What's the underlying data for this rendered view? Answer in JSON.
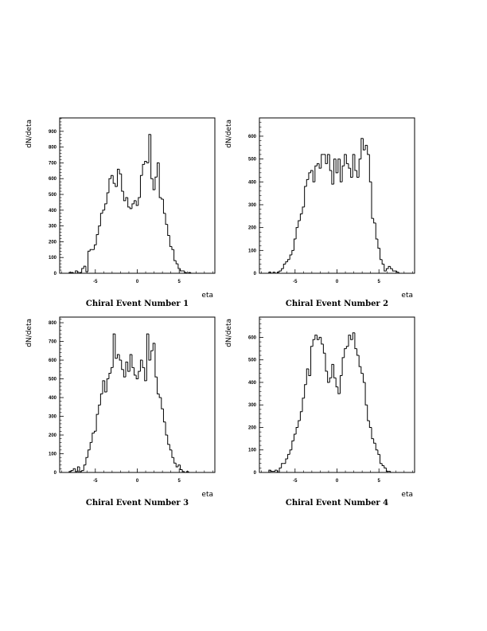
{
  "chart_data": [
    {
      "type": "histogram",
      "caption": "Chiral Event Number 1",
      "xlabel": "eta",
      "ylabel": "dN/deta",
      "xlim": [
        -9.25,
        9.25
      ],
      "ylim": [
        0,
        985
      ],
      "bin_width": 0.25,
      "xticks": [
        -5,
        0,
        5
      ],
      "xtick_labels": [
        "-5",
        "0",
        "5"
      ],
      "yticks": [
        0,
        100,
        200,
        300,
        400,
        500,
        600,
        700,
        800,
        900
      ],
      "x": [
        -8.0,
        -7.75,
        -7.5,
        -7.25,
        -7.0,
        -6.75,
        -6.5,
        -6.25,
        -6.0,
        -5.75,
        -5.5,
        -5.25,
        -5.0,
        -4.75,
        -4.5,
        -4.25,
        -4.0,
        -3.75,
        -3.5,
        -3.25,
        -3.0,
        -2.75,
        -2.5,
        -2.25,
        -2.0,
        -1.75,
        -1.5,
        -1.25,
        -1.0,
        -0.75,
        -0.5,
        -0.25,
        0.0,
        0.25,
        0.5,
        0.75,
        1.0,
        1.25,
        1.5,
        1.75,
        2.0,
        2.25,
        2.5,
        2.75,
        3.0,
        3.25,
        3.5,
        3.75,
        4.0,
        4.25,
        4.5,
        4.75,
        5.0,
        5.25,
        5.5,
        5.75,
        6.0,
        6.25,
        6.5,
        6.75,
        7.0,
        7.25,
        7.5,
        7.75,
        8.0
      ],
      "values": [
        5,
        5,
        0,
        15,
        0,
        5,
        30,
        45,
        10,
        140,
        150,
        150,
        180,
        245,
        300,
        380,
        400,
        440,
        510,
        600,
        620,
        570,
        550,
        660,
        630,
        520,
        460,
        480,
        420,
        410,
        440,
        460,
        430,
        480,
        620,
        690,
        710,
        700,
        880,
        600,
        530,
        610,
        700,
        480,
        470,
        380,
        310,
        240,
        170,
        150,
        80,
        60,
        30,
        15,
        15,
        5,
        0,
        5,
        0,
        0,
        0,
        0,
        0,
        0,
        0
      ]
    },
    {
      "type": "histogram",
      "caption": "Chiral Event Number 2",
      "xlabel": "eta",
      "ylabel": "dN/deta",
      "xlim": [
        -9.25,
        9.25
      ],
      "ylim": [
        0,
        680
      ],
      "bin_width": 0.25,
      "xticks": [
        -5,
        0,
        5
      ],
      "xtick_labels": [
        "-5",
        "0",
        "5"
      ],
      "yticks": [
        0,
        100,
        200,
        300,
        400,
        500,
        600
      ],
      "x": [
        -8.0,
        -7.75,
        -7.5,
        -7.25,
        -7.0,
        -6.75,
        -6.5,
        -6.25,
        -6.0,
        -5.75,
        -5.5,
        -5.25,
        -5.0,
        -4.75,
        -4.5,
        -4.25,
        -4.0,
        -3.75,
        -3.5,
        -3.25,
        -3.0,
        -2.75,
        -2.5,
        -2.25,
        -2.0,
        -1.75,
        -1.5,
        -1.25,
        -1.0,
        -0.75,
        -0.5,
        -0.25,
        0.0,
        0.25,
        0.5,
        0.75,
        1.0,
        1.25,
        1.5,
        1.75,
        2.0,
        2.25,
        2.5,
        2.75,
        3.0,
        3.25,
        3.5,
        3.75,
        4.0,
        4.25,
        4.5,
        4.75,
        5.0,
        5.25,
        5.5,
        5.75,
        6.0,
        6.25,
        6.5,
        6.75,
        7.0,
        7.25,
        7.5,
        7.75,
        8.0
      ],
      "values": [
        5,
        0,
        5,
        0,
        5,
        10,
        20,
        40,
        50,
        60,
        80,
        100,
        150,
        200,
        230,
        260,
        290,
        380,
        410,
        440,
        450,
        400,
        470,
        480,
        460,
        520,
        520,
        480,
        520,
        450,
        390,
        500,
        440,
        500,
        400,
        470,
        520,
        480,
        460,
        420,
        520,
        450,
        420,
        500,
        590,
        540,
        560,
        520,
        400,
        240,
        220,
        150,
        110,
        60,
        40,
        10,
        20,
        30,
        20,
        10,
        10,
        5,
        0,
        0,
        0
      ]
    },
    {
      "type": "histogram",
      "caption": "Chiral Event Number 3",
      "xlabel": "eta",
      "ylabel": "dN/deta",
      "xlim": [
        -9.25,
        9.25
      ],
      "ylim": [
        0,
        830
      ],
      "bin_width": 0.25,
      "xticks": [
        -5,
        0,
        5
      ],
      "xtick_labels": [
        "-5",
        "0",
        "5"
      ],
      "yticks": [
        0,
        100,
        200,
        300,
        400,
        500,
        600,
        700,
        800
      ],
      "x": [
        -8.0,
        -7.75,
        -7.5,
        -7.25,
        -7.0,
        -6.75,
        -6.5,
        -6.25,
        -6.0,
        -5.75,
        -5.5,
        -5.25,
        -5.0,
        -4.75,
        -4.5,
        -4.25,
        -4.0,
        -3.75,
        -3.5,
        -3.25,
        -3.0,
        -2.75,
        -2.5,
        -2.25,
        -2.0,
        -1.75,
        -1.5,
        -1.25,
        -1.0,
        -0.75,
        -0.5,
        -0.25,
        0.0,
        0.25,
        0.5,
        0.75,
        1.0,
        1.25,
        1.5,
        1.75,
        2.0,
        2.25,
        2.5,
        2.75,
        3.0,
        3.25,
        3.5,
        3.75,
        4.0,
        4.25,
        4.5,
        4.75,
        5.0,
        5.25,
        5.5,
        5.75,
        6.0,
        6.25,
        6.5,
        6.75,
        7.0,
        7.25,
        7.5,
        7.75,
        8.0
      ],
      "values": [
        5,
        10,
        20,
        5,
        30,
        5,
        10,
        40,
        80,
        120,
        160,
        210,
        220,
        310,
        360,
        420,
        490,
        430,
        500,
        530,
        560,
        740,
        610,
        630,
        600,
        550,
        510,
        590,
        540,
        630,
        560,
        520,
        500,
        540,
        600,
        560,
        490,
        740,
        600,
        650,
        690,
        510,
        420,
        400,
        340,
        270,
        200,
        150,
        120,
        80,
        50,
        30,
        40,
        15,
        5,
        0,
        5,
        0,
        0,
        0,
        0,
        0,
        0,
        0,
        0
      ]
    },
    {
      "type": "histogram",
      "caption": "Chiral Event Number 4",
      "xlabel": "eta",
      "ylabel": "dN/deta",
      "xlim": [
        -9.25,
        9.25
      ],
      "ylim": [
        0,
        690
      ],
      "bin_width": 0.25,
      "xticks": [
        -5,
        0,
        5
      ],
      "xtick_labels": [
        "-5",
        "0",
        "5"
      ],
      "yticks": [
        0,
        100,
        200,
        300,
        400,
        500,
        600
      ],
      "x": [
        -8.0,
        -7.75,
        -7.5,
        -7.25,
        -7.0,
        -6.75,
        -6.5,
        -6.25,
        -6.0,
        -5.75,
        -5.5,
        -5.25,
        -5.0,
        -4.75,
        -4.5,
        -4.25,
        -4.0,
        -3.75,
        -3.5,
        -3.25,
        -3.0,
        -2.75,
        -2.5,
        -2.25,
        -2.0,
        -1.75,
        -1.5,
        -1.25,
        -1.0,
        -0.75,
        -0.5,
        -0.25,
        0.0,
        0.25,
        0.5,
        0.75,
        1.0,
        1.25,
        1.5,
        1.75,
        2.0,
        2.25,
        2.5,
        2.75,
        3.0,
        3.25,
        3.5,
        3.75,
        4.0,
        4.25,
        4.5,
        4.75,
        5.0,
        5.25,
        5.5,
        5.75,
        6.0,
        6.25,
        6.5,
        6.75,
        7.0,
        7.25,
        7.5,
        7.75,
        8.0
      ],
      "values": [
        10,
        5,
        5,
        10,
        0,
        20,
        40,
        40,
        60,
        80,
        100,
        140,
        170,
        200,
        230,
        270,
        330,
        390,
        460,
        430,
        560,
        590,
        610,
        590,
        600,
        570,
        530,
        450,
        400,
        420,
        480,
        420,
        380,
        350,
        430,
        510,
        550,
        560,
        610,
        590,
        620,
        550,
        520,
        470,
        440,
        400,
        300,
        230,
        200,
        150,
        130,
        100,
        80,
        40,
        30,
        20,
        5,
        5,
        0,
        0,
        0,
        0,
        0,
        0,
        0
      ]
    }
  ]
}
